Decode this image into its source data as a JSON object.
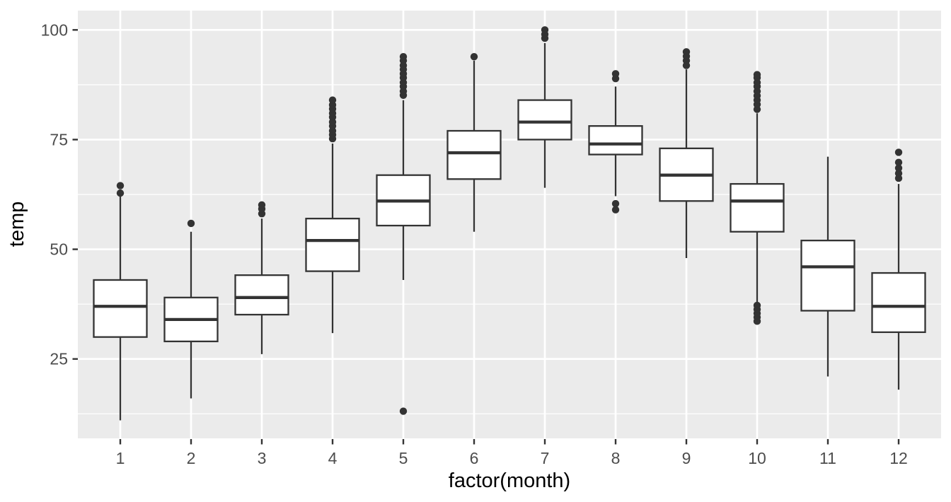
{
  "chart_data": {
    "type": "boxplot",
    "title": "",
    "xlabel": "factor(month)",
    "ylabel": "temp",
    "categories": [
      "1",
      "2",
      "3",
      "4",
      "5",
      "6",
      "7",
      "8",
      "9",
      "10",
      "11",
      "12"
    ],
    "y_ticks": [
      25,
      50,
      75,
      100
    ],
    "y_tick_labels": [
      "25",
      "50",
      "75",
      "100"
    ],
    "y_minor_ticks": [
      12.5,
      37.5,
      62.5,
      87.5
    ],
    "ylim": [
      6.9,
      104.4
    ],
    "grid": "on",
    "legend": "none",
    "series": [
      {
        "month": "1",
        "lower": 11.0,
        "q1": 30.0,
        "median": 37.0,
        "q3": 43.0,
        "upper": 62.1,
        "outliers": [
          62.8,
          64.5
        ]
      },
      {
        "month": "2",
        "lower": 16.0,
        "q1": 29.0,
        "median": 34.0,
        "q3": 39.0,
        "upper": 54.0,
        "outliers": [
          55.9
        ]
      },
      {
        "month": "3",
        "lower": 26.1,
        "q1": 35.1,
        "median": 39.0,
        "q3": 44.1,
        "upper": 57.0,
        "outliers": [
          58.1,
          59.2,
          60.1
        ]
      },
      {
        "month": "4",
        "lower": 30.9,
        "q1": 45.0,
        "median": 52.0,
        "q3": 57.0,
        "upper": 74.1,
        "outliers": [
          75.2,
          76.1,
          77.0,
          78.1,
          79.0,
          80.1,
          81.0,
          82.0,
          82.9,
          84.0
        ]
      },
      {
        "month": "5",
        "lower": 43.0,
        "q1": 55.4,
        "median": 61.0,
        "q3": 66.9,
        "upper": 84.0,
        "outliers": [
          13.1,
          85.1,
          86.0,
          87.1,
          88.0,
          89.1,
          90.0,
          91.0,
          91.9,
          93.0,
          93.9
        ]
      },
      {
        "month": "6",
        "lower": 54.0,
        "q1": 66.0,
        "median": 72.0,
        "q3": 77.0,
        "upper": 93.0,
        "outliers": [
          93.9
        ]
      },
      {
        "month": "7",
        "lower": 64.0,
        "q1": 75.0,
        "median": 79.0,
        "q3": 84.0,
        "upper": 97.0,
        "outliers": [
          98.1,
          99.0,
          100.0
        ]
      },
      {
        "month": "8",
        "lower": 62.1,
        "q1": 71.6,
        "median": 74.0,
        "q3": 78.1,
        "upper": 87.1,
        "outliers": [
          59.0,
          60.4,
          88.9,
          90.0
        ]
      },
      {
        "month": "9",
        "lower": 48.0,
        "q1": 61.0,
        "median": 66.9,
        "q3": 73.0,
        "upper": 91.0,
        "outliers": [
          91.9,
          93.0,
          94.0,
          95.0
        ]
      },
      {
        "month": "10",
        "lower": 38.0,
        "q1": 54.0,
        "median": 61.0,
        "q3": 64.9,
        "upper": 81.0,
        "outliers": [
          33.6,
          34.5,
          35.4,
          36.3,
          37.2,
          81.9,
          83.0,
          84.0,
          85.0,
          86.0,
          87.1,
          88.0,
          89.1,
          89.8
        ]
      },
      {
        "month": "11",
        "lower": 21.0,
        "q1": 36.0,
        "median": 46.0,
        "q3": 52.0,
        "upper": 71.1,
        "outliers": []
      },
      {
        "month": "12",
        "lower": 18.0,
        "q1": 31.1,
        "median": 37.0,
        "q3": 44.6,
        "upper": 64.9,
        "outliers": [
          66.2,
          67.3,
          68.5,
          69.8,
          72.1
        ]
      }
    ],
    "colors": {
      "panel_background": "#EBEBEB",
      "gridline": "#FFFFFF",
      "box_stroke": "#333333",
      "box_fill": "#FFFFFF",
      "outlier_fill": "#333333",
      "tick_mark": "#333333",
      "tick_label": "#4D4D4D",
      "axis_title": "#000000",
      "page_background": "#FFFFFF"
    }
  }
}
